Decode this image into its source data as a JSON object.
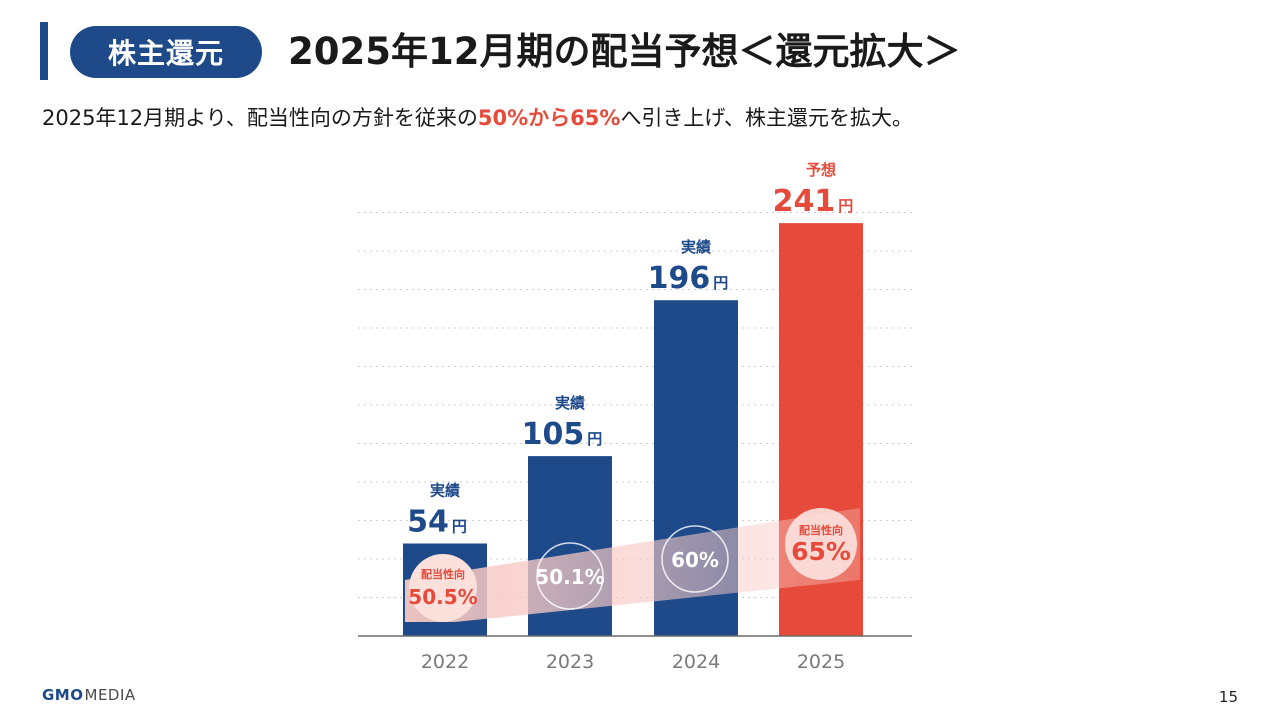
{
  "header": {
    "tag": "株主還元",
    "title": "2025年12月期の配当予想＜還元拡大＞"
  },
  "subtitle": {
    "before": "2025年12月期より、配当性向の方針を従来の",
    "highlight": "50%から65%",
    "after": "へ引き上げ、株主還元を拡大。"
  },
  "colors": {
    "navy": "#1e4a8a",
    "red": "#e64a3a",
    "band": "#f7c9c4",
    "circle_pink": "#fbe0dc"
  },
  "chart_data": {
    "type": "bar",
    "categories": [
      "2022",
      "2023",
      "2024",
      "2025"
    ],
    "values": [
      54,
      105,
      196,
      241
    ],
    "value_unit": "円",
    "status_labels": [
      "実績",
      "実績",
      "実績",
      "予想"
    ],
    "payout_ratio": {
      "label": "配当性向",
      "values": [
        "50.5%",
        "50.1%",
        "60%",
        "65%"
      ]
    },
    "ylim": [
      0,
      251
    ],
    "grid": true,
    "legend": "none"
  },
  "footer": {
    "brand": "GMO",
    "brand_sub": "MEDIA",
    "page_number": "15"
  }
}
